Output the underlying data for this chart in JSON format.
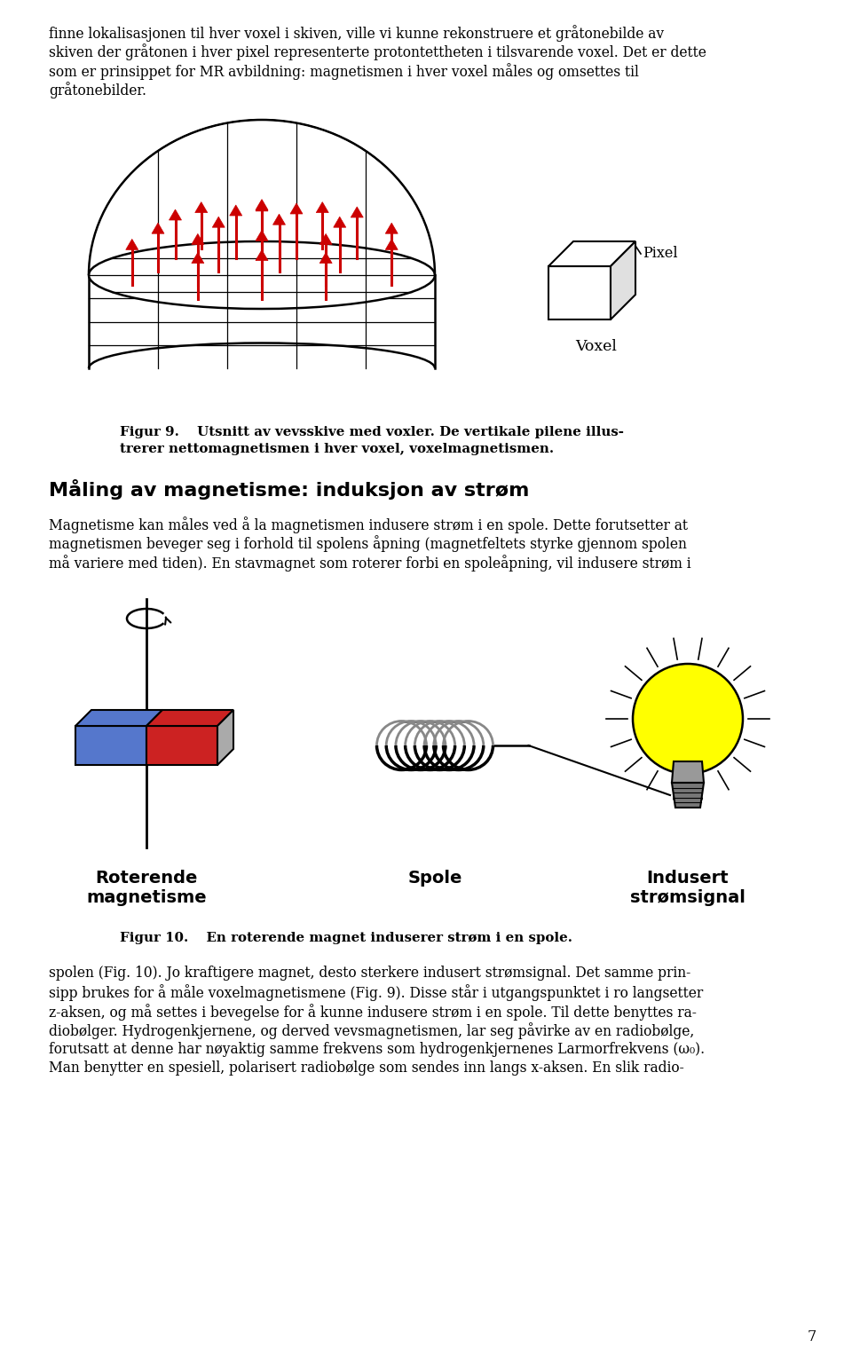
{
  "bg_color": "#ffffff",
  "text_color": "#000000",
  "intro_text": "finne lokalisasjonen til hver voxel i skiven, ville vi kunne rekonstruere et gråtonebilde av\nskiven der gråtonen i hver pixel representerte protontettheten i tilsvarende voxel. Det er dette\nsom er prinsippet for MR avbildning: magnetismen i hver voxel måles og omsettes til\ngråtonebilder.",
  "figur9_caption_bold": "Figur 9.  Utsnitt av vevsskive med voxler. De vertikale pilene illus-\ntrerer nettomagnetismen i hver voxel, voxelmagnetismen.",
  "section_heading": "Måling av magnetisme: induksjon av strøm",
  "section_body": "Magnetisme kan måles ved å la magnetismen indusere strøm i en spole. Dette forutsetter at\nmagnetismen beveger seg i forhold til spolens åpning (magnetfeltets styrke gjennom spolen\nmå variere med tiden). En stavmagnet som roterer forbi en spoleåpning, vil indusere strøm i",
  "label_rot_mag": "Roterende\nmagnetisme",
  "label_spole": "Spole",
  "label_indusert": "Indusert\nstrømsignal",
  "figur10_caption": "Figur 10.  En roterende magnet induserer strøm i en spole.",
  "bottom_text": "spolen (Fig. 10). Jo kraftigere magnet, desto sterkere indusert strømsignal. Det samme prin-\nsipp brukes for å måle voxelmagnetismene (Fig. 9). Disse står i utgangspunktet i ro langsetter\nz-aksen, og må settes i bevegelse for å kunne indusere strøm i en spole. Til dette benyttes ra-\ndiobølger. Hydrogenkjernene, og derved vevsmagnetismen, lar seg påvirke av en radiobølge,\nforutsatt at denne har nøyaktig samme frekvens som hydrogenkjernenes Larmorfrekvens (ω₀).\nMan benytter en spesiell, polarisert radiobølge som sendes inn langs x-aksen. En slik radio-",
  "page_number": "7",
  "arrow_color": "#cc0000",
  "magnet_blue": "#5577cc",
  "magnet_red": "#cc2222",
  "bulb_yellow": "#ffff00",
  "bulb_gray": "#999999",
  "coil_color": "#000000"
}
